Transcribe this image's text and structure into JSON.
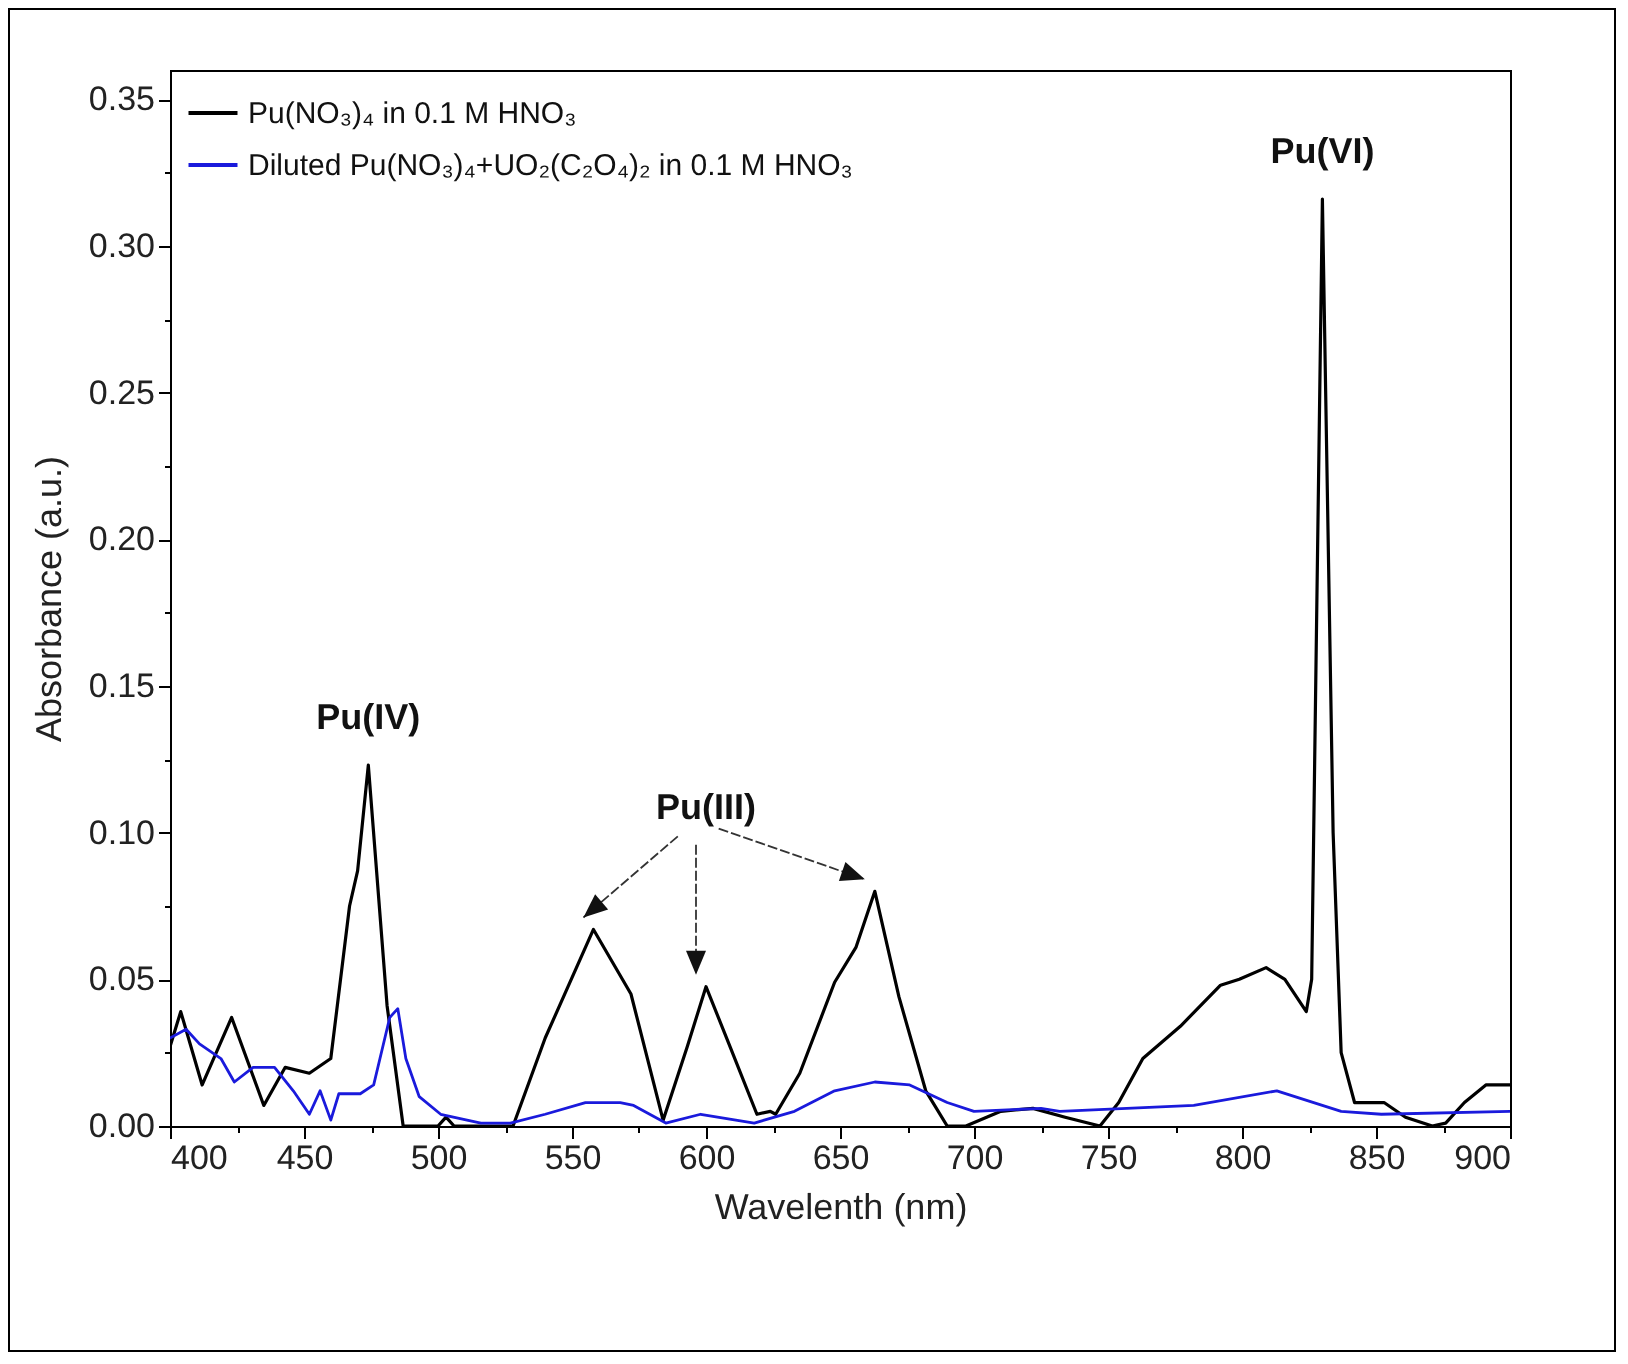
{
  "chart_data": {
    "type": "line",
    "xlabel": "Wavelenth (nm)",
    "ylabel": "Absorbance (a.u.)",
    "xlim": [
      400,
      900
    ],
    "ylim": [
      0,
      0.36
    ],
    "xticks": [
      400,
      {
        "value": 425,
        "label": null
      },
      450,
      {
        "value": 475,
        "label": null
      },
      500,
      {
        "value": 525,
        "label": null
      },
      550,
      {
        "value": 575,
        "label": null
      },
      600,
      {
        "value": 625,
        "label": null
      },
      650,
      {
        "value": 675,
        "label": null
      },
      700,
      {
        "value": 725,
        "label": null
      },
      750,
      {
        "value": 775,
        "label": null
      },
      800,
      {
        "value": 825,
        "label": null
      },
      850,
      {
        "value": 875,
        "label": null
      },
      900
    ],
    "yticks": [
      {
        "value": 0,
        "label": "0.00"
      },
      {
        "value": 0.025,
        "label": null
      },
      {
        "value": 0.05,
        "label": "0.05"
      },
      {
        "value": 0.075,
        "label": null
      },
      {
        "value": 0.1,
        "label": "0.10"
      },
      {
        "value": 0.125,
        "label": null
      },
      {
        "value": 0.15,
        "label": "0.15"
      },
      {
        "value": 0.175,
        "label": null
      },
      {
        "value": 0.2,
        "label": "0.20"
      },
      {
        "value": 0.225,
        "label": null
      },
      {
        "value": 0.25,
        "label": "0.25"
      },
      {
        "value": 0.275,
        "label": null
      },
      {
        "value": 0.3,
        "label": "0.30"
      },
      {
        "value": 0.325,
        "label": null
      },
      {
        "value": 0.35,
        "label": "0.35"
      }
    ],
    "legend": "top left",
    "grid": false,
    "line_style": "solid",
    "marker": "none",
    "series": [
      {
        "name": "Pu(NO₃)₄ in 0.1 M HNO₃",
        "color": "#000000",
        "x": [
          400,
          404,
          412,
          423,
          435,
          443,
          452,
          460,
          467,
          470,
          474,
          481,
          487,
          500,
          503,
          506,
          528,
          540,
          558,
          572,
          584,
          593,
          600,
          609,
          619,
          624,
          626,
          635,
          648,
          656,
          663,
          672,
          682,
          690,
          697,
          710,
          722,
          734,
          747,
          754,
          763,
          777,
          792,
          799,
          809,
          816,
          824,
          826,
          830,
          834,
          837,
          842,
          853,
          861,
          871,
          876,
          883,
          891,
          900
        ],
        "values": [
          0.027,
          0.039,
          0.014,
          0.037,
          0.007,
          0.02,
          0.018,
          0.023,
          0.075,
          0.087,
          0.123,
          0.041,
          0,
          0,
          0.003,
          0,
          0,
          0.03,
          0.067,
          0.045,
          0.002,
          0.027,
          0.0475,
          0.027,
          0.004,
          0.005,
          0.004,
          0.018,
          0.049,
          0.061,
          0.08,
          0.044,
          0.012,
          0,
          0,
          0.005,
          0.006,
          0.003,
          0,
          0.008,
          0.023,
          0.034,
          0.048,
          0.05,
          0.054,
          0.05,
          0.039,
          0.05,
          0.316,
          0.1,
          0.025,
          0.008,
          0.008,
          0.003,
          0,
          0.001,
          0.008,
          0.014,
          0.014
        ]
      },
      {
        "name": "Diluted Pu(NO₃)₄+UO₂(C₂O₄)₂ in 0.1 M HNO₃",
        "color": "#1a1adc",
        "x": [
          400,
          406,
          411,
          419,
          424,
          431,
          439,
          446,
          452,
          456,
          460,
          463,
          471,
          476,
          482,
          485,
          488,
          493,
          501,
          516,
          527,
          540,
          555,
          568,
          573,
          585,
          598,
          618,
          633,
          648,
          663,
          676,
          690,
          700,
          725,
          732,
          782,
          813,
          837,
          852,
          900
        ],
        "values": [
          0.03,
          0.033,
          0.028,
          0.023,
          0.015,
          0.02,
          0.02,
          0.012,
          0.004,
          0.012,
          0.002,
          0.011,
          0.011,
          0.014,
          0.037,
          0.04,
          0.023,
          0.01,
          0.004,
          0.001,
          0.001,
          0.004,
          0.008,
          0.008,
          0.007,
          0.001,
          0.004,
          0.001,
          0.005,
          0.012,
          0.015,
          0.014,
          0.008,
          0.005,
          0.006,
          0.005,
          0.007,
          0.012,
          0.005,
          0.004,
          0.005
        ]
      }
    ],
    "annotations": [
      {
        "text": "Pu(IV)",
        "x": 474,
        "y": 0.123
      },
      {
        "text": "Pu(III)",
        "x": 600,
        "y": 0.0475
      },
      {
        "text": "Pu(VI)",
        "x": 830,
        "y": 0.316
      }
    ]
  }
}
